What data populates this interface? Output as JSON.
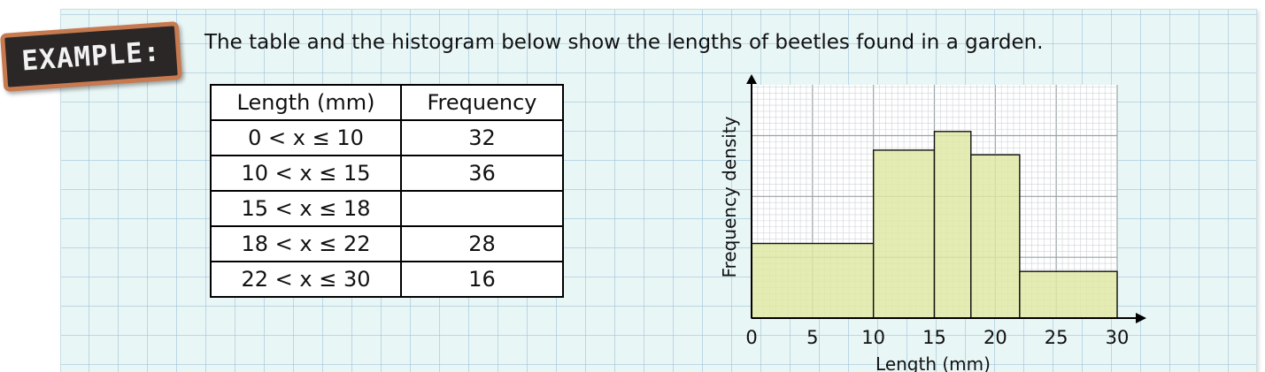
{
  "badge": {
    "label": "EXAMPLE:"
  },
  "intro": {
    "text": "The table and the histogram below show the lengths of beetles found in a garden."
  },
  "table": {
    "headers": [
      "Length (mm)",
      "Frequency"
    ],
    "rows": [
      [
        "0 < x ≤ 10",
        "32"
      ],
      [
        "10 < x ≤ 15",
        "36"
      ],
      [
        "15 < x ≤ 18",
        ""
      ],
      [
        "18 < x ≤ 22",
        "28"
      ],
      [
        "22 < x ≤ 30",
        "16"
      ]
    ]
  },
  "chart_data": {
    "type": "bar",
    "ylabel": "Frequency density",
    "xlabel": "Length (mm)",
    "xlim": [
      0,
      30
    ],
    "ylim": [
      0,
      10
    ],
    "x_ticks": [
      "0",
      "5",
      "10",
      "15",
      "20",
      "25",
      "30"
    ],
    "grid": true,
    "bar_color": "#dfe8a2",
    "bars": [
      {
        "x0": 0,
        "x1": 10,
        "y": 3.2
      },
      {
        "x0": 10,
        "x1": 15,
        "y": 7.2
      },
      {
        "x0": 15,
        "x1": 18,
        "y": 8
      },
      {
        "x0": 18,
        "x1": 22,
        "y": 7
      },
      {
        "x0": 22,
        "x1": 30,
        "y": 2
      }
    ]
  },
  "colors": {
    "badge_bg": "#2b2726",
    "badge_border": "#c7794f",
    "paper": "#e9f6f6"
  }
}
